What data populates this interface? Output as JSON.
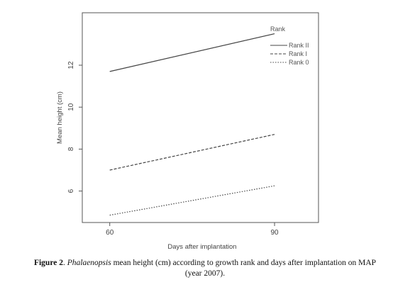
{
  "chart_data": {
    "type": "line",
    "xlabel": "Days after implantation",
    "ylabel": "Mean height (cm)",
    "x": [
      60,
      90
    ],
    "xlim": [
      55,
      98
    ],
    "ylim": [
      4.5,
      14.5
    ],
    "x_ticks": [
      60,
      90
    ],
    "y_ticks": [
      6,
      8,
      10,
      12
    ],
    "grid": false,
    "legend_title": "Rank",
    "legend_position": "top-right",
    "series": [
      {
        "name": "Rank II",
        "values": [
          11.7,
          13.5
        ],
        "style": "solid"
      },
      {
        "name": "Rank I",
        "values": [
          7.0,
          8.7
        ],
        "style": "dashed"
      },
      {
        "name": "Rank 0",
        "values": [
          4.85,
          6.25
        ],
        "style": "dotted"
      }
    ]
  },
  "caption": {
    "label": "Figure 2",
    "label_sep": ". ",
    "genus": "Phalaenopsis",
    "text": " mean height (cm) according to growth rank and days after implantation on ",
    "abbrev": "MAP",
    "year": "(year 2007)."
  }
}
